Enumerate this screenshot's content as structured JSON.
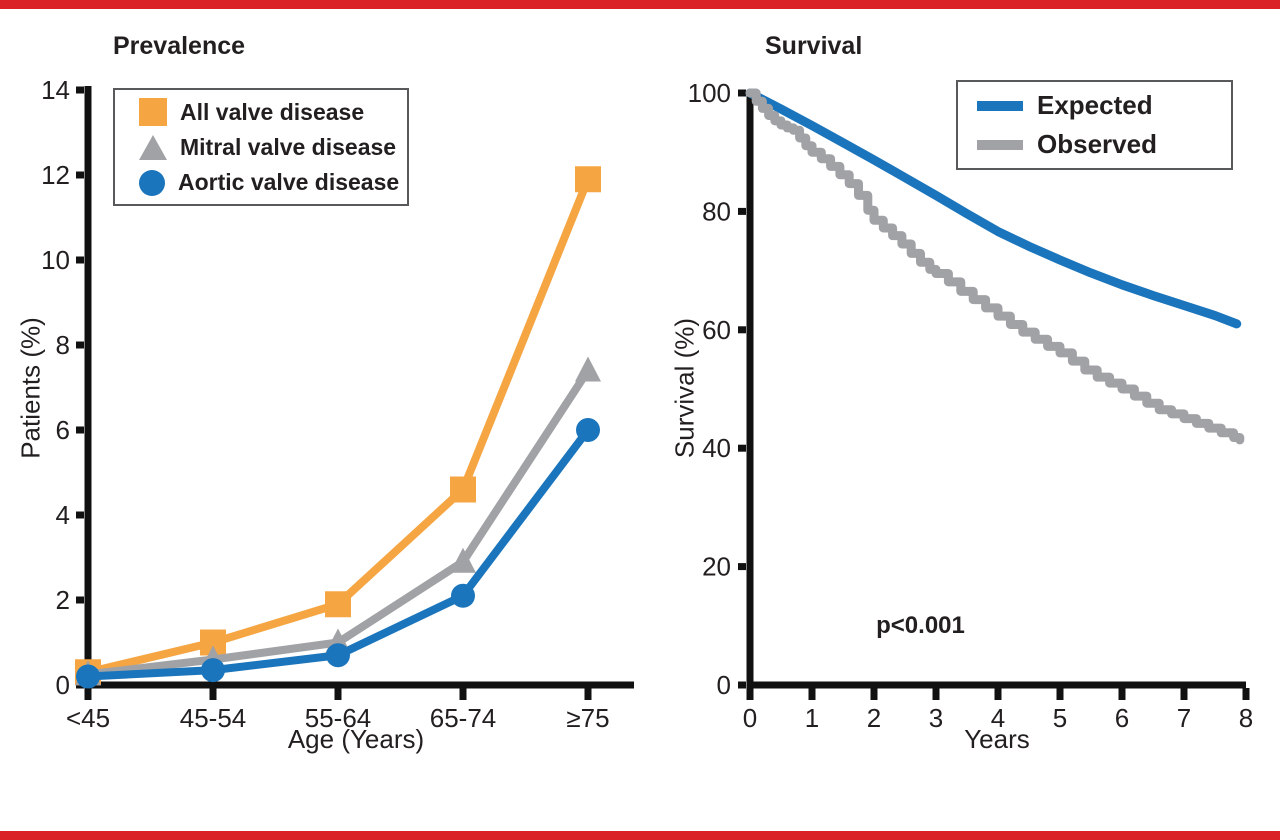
{
  "page": {
    "background": "#FFFFFF",
    "top_bar_color": "#DB2128",
    "bottom_bar_color": "#DB2128",
    "text_color": "#231F20",
    "axis_color": "#111111"
  },
  "chart_data": [
    {
      "id": "prevalence",
      "type": "line",
      "title": "Prevalence",
      "xlabel": "Age (Years)",
      "ylabel": "Patients (%)",
      "categories": [
        "<45",
        "45-54",
        "55-64",
        "65-74",
        "≥75"
      ],
      "ylim": [
        0,
        14
      ],
      "yticks": [
        0,
        2,
        4,
        6,
        8,
        10,
        12,
        14
      ],
      "grid": false,
      "legend_position": "top-left-inside",
      "series": [
        {
          "name": "All valve disease",
          "marker": "square",
          "color": "#F5A643",
          "values": [
            0.3,
            1.0,
            1.9,
            4.6,
            11.9
          ]
        },
        {
          "name": "Mitral valve disease",
          "marker": "triangle",
          "color": "#A0A2A5",
          "values": [
            0.25,
            0.6,
            1.0,
            2.9,
            7.4
          ]
        },
        {
          "name": "Aortic valve disease",
          "marker": "circle",
          "color": "#1B75BC",
          "values": [
            0.2,
            0.35,
            0.7,
            2.1,
            6.0
          ]
        }
      ]
    },
    {
      "id": "survival",
      "type": "line",
      "title": "Survival",
      "xlabel": "Years",
      "ylabel": "Survival (%)",
      "xlim": [
        0,
        8
      ],
      "xticks": [
        0,
        1,
        2,
        3,
        4,
        5,
        6,
        7,
        8
      ],
      "ylim": [
        0,
        100
      ],
      "yticks": [
        0,
        20,
        40,
        60,
        80,
        100
      ],
      "grid": false,
      "legend_position": "top-right-inside",
      "annotation": {
        "text": "p<0.001",
        "x": 2.75,
        "y": 10
      },
      "series": [
        {
          "name": "Expected",
          "color": "#1B75BC",
          "style": "line",
          "x": [
            0,
            0.5,
            1,
            1.5,
            2,
            2.5,
            3,
            3.5,
            4,
            4.5,
            5,
            5.5,
            6,
            6.5,
            7,
            7.5,
            7.85
          ],
          "y": [
            100,
            97.3,
            94.5,
            91.6,
            88.7,
            85.7,
            82.7,
            79.6,
            76.6,
            74.1,
            71.8,
            69.6,
            67.6,
            65.8,
            64.1,
            62.4,
            61
          ]
        },
        {
          "name": "Observed",
          "color": "#A0A2A5",
          "style": "step",
          "x": [
            0,
            0.1,
            0.2,
            0.3,
            0.4,
            0.5,
            0.6,
            0.7,
            0.8,
            0.9,
            1,
            1.15,
            1.3,
            1.45,
            1.6,
            1.75,
            1.9,
            2,
            2.15,
            2.3,
            2.45,
            2.6,
            2.75,
            2.9,
            3,
            3.2,
            3.4,
            3.6,
            3.8,
            4,
            4.2,
            4.4,
            4.6,
            4.8,
            5,
            5.2,
            5.4,
            5.6,
            5.8,
            6,
            6.2,
            6.4,
            6.6,
            6.8,
            7,
            7.2,
            7.4,
            7.6,
            7.8,
            7.9
          ],
          "y": [
            100,
            98.6,
            97.4,
            96.2,
            95.3,
            94.6,
            94.1,
            93.7,
            92.4,
            91.1,
            90,
            88.9,
            87.6,
            86.2,
            84.7,
            82.7,
            80.2,
            78.5,
            77.2,
            75.9,
            74.5,
            72.9,
            71.4,
            70.2,
            69.5,
            68.1,
            66.5,
            65.1,
            63.7,
            62.3,
            60.9,
            59.6,
            58.4,
            57.2,
            56.1,
            54.7,
            53.2,
            52,
            51,
            50,
            48.8,
            47.6,
            46.5,
            45.8,
            45,
            44.2,
            43.4,
            42.6,
            41.8,
            41.4
          ]
        }
      ]
    }
  ]
}
